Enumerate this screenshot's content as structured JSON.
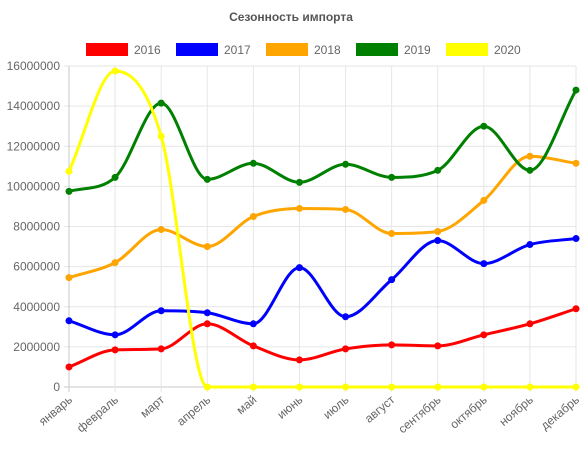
{
  "chart_data": {
    "type": "line",
    "title": "Сезонность импорта",
    "categories": [
      "январь",
      "февраль",
      "март",
      "апрель",
      "май",
      "июнь",
      "июль",
      "август",
      "сентябрь",
      "октябрь",
      "ноябрь",
      "декабрь"
    ],
    "ylim": [
      0,
      16000000
    ],
    "yticks": [
      "0",
      "2000000",
      "4000000",
      "6000000",
      "8000000",
      "10000000",
      "12000000",
      "14000000",
      "16000000"
    ],
    "grid": true,
    "legend_position": "top",
    "series": [
      {
        "name": "2016",
        "color": "#ff0000",
        "values": [
          1000000,
          1850000,
          1900000,
          3150000,
          2050000,
          1350000,
          1900000,
          2100000,
          2050000,
          2600000,
          3150000,
          3900000
        ]
      },
      {
        "name": "2017",
        "color": "#0000ff",
        "values": [
          3300000,
          2600000,
          3800000,
          3700000,
          3150000,
          5950000,
          3500000,
          5350000,
          7300000,
          6150000,
          7100000,
          7400000
        ]
      },
      {
        "name": "2018",
        "color": "#ffa500",
        "values": [
          5450000,
          6200000,
          7850000,
          7000000,
          8500000,
          8900000,
          8850000,
          7650000,
          7750000,
          9300000,
          11500000,
          11150000
        ]
      },
      {
        "name": "2019",
        "color": "#008000",
        "values": [
          9750000,
          10450000,
          14150000,
          10350000,
          11150000,
          10200000,
          11100000,
          10450000,
          10800000,
          13000000,
          10800000,
          14800000
        ]
      },
      {
        "name": "2020",
        "color": "#ffff00",
        "values": [
          10750000,
          15750000,
          12500000,
          0,
          0,
          0,
          0,
          0,
          0,
          0,
          0,
          0
        ]
      }
    ]
  }
}
